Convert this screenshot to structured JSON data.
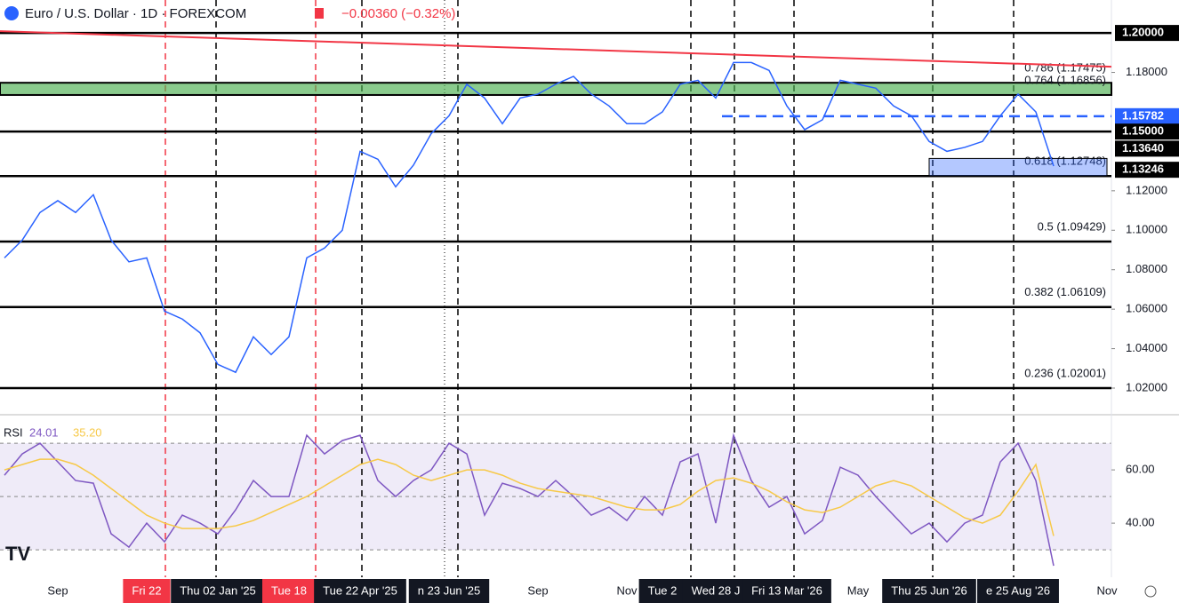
{
  "chart_data": [
    {
      "type": "line",
      "title": "Euro / U.S. Dollar · 1D · FOREXCOM",
      "subtitle": "−0.00360 (−0.32%)",
      "categories": [
        null,
        null,
        null,
        "Sep",
        null,
        null,
        null,
        null,
        "Fri 22",
        null,
        null,
        null,
        "Thu 02 Jan '25",
        null,
        null,
        null,
        "Tue 18",
        null,
        null,
        null,
        "Tue 22 Apr '25",
        null,
        null,
        null,
        null,
        "n 23 Jun '25",
        null,
        null,
        null,
        null,
        "Sep",
        null,
        null,
        null,
        null,
        "Nov",
        null,
        "Tue 2",
        null,
        null,
        "Wed 28 J",
        null,
        null,
        null,
        "Fri 13 Mar '26",
        null,
        null,
        null,
        "May",
        null,
        null,
        null,
        "Thu 25 Jun '26",
        null,
        null,
        null,
        null,
        "e 25 Aug '26",
        null,
        null,
        null,
        null,
        "Nov"
      ],
      "values": [
        1.086,
        1.095,
        1.109,
        1.115,
        1.109,
        1.118,
        1.095,
        1.084,
        1.086,
        1.059,
        1.055,
        1.048,
        1.032,
        1.028,
        1.046,
        1.037,
        1.046,
        1.086,
        1.091,
        1.1,
        1.14,
        1.136,
        1.122,
        1.133,
        1.149,
        1.158,
        1.174,
        1.167,
        1.154,
        1.167,
        1.169,
        1.174,
        1.178,
        1.169,
        1.163,
        1.154,
        1.154,
        1.16,
        1.174,
        1.176,
        1.167,
        1.185,
        1.185,
        1.181,
        1.163,
        1.151,
        1.156,
        1.176,
        1.174,
        1.172,
        1.163,
        1.158,
        1.145,
        1.14,
        1.142,
        1.145,
        1.158,
        1.169,
        1.16,
        1.1325,
        null,
        null,
        null
      ],
      "color": "#2962ff",
      "ylim": [
        1.0065,
        1.2167
      ],
      "yticks": [
        {
          "value": 1.02,
          "label": "1.02000"
        },
        {
          "value": 1.04,
          "label": "1.04000"
        },
        {
          "value": 1.06,
          "label": "1.06000"
        },
        {
          "value": 1.08,
          "label": "1.08000"
        },
        {
          "value": 1.1,
          "label": "1.10000"
        },
        {
          "value": 1.12,
          "label": "1.12000"
        },
        {
          "value": 1.18,
          "label": "1.18000"
        }
      ],
      "levels": [
        {
          "value": 1.2,
          "label": "1.20000",
          "color": "#000000"
        },
        {
          "value": 1.15782,
          "label": "1.15782",
          "color": "#2962ff"
        },
        {
          "value": 1.15,
          "label": "1.15000",
          "color": "#000000"
        },
        {
          "value": 1.1364,
          "label": "1.13640",
          "color": "#000000"
        },
        {
          "value": 1.13246,
          "label": "1.13246",
          "color": "#000000"
        }
      ],
      "fib_levels": [
        {
          "label": "0.786 (1.17475)",
          "value": 1.17475
        },
        {
          "label": "0.764 (1.16856)",
          "value": 1.16856
        },
        {
          "label": "0.618 (1.12748)",
          "value": 1.12748
        },
        {
          "label": "0.5 (1.09429)",
          "value": 1.09429
        },
        {
          "label": "0.382 (1.06109)",
          "value": 1.06109
        },
        {
          "label": "0.236 (1.02001)",
          "value": 1.02001
        }
      ],
      "zone": [
        1.16856,
        1.17475
      ],
      "zone_color": "#4caf50",
      "trendline": [
        1.2009,
        1.1829
      ],
      "trendline_color": "#f23645"
    },
    {
      "type": "line",
      "title": "RSI",
      "series": [
        {
          "name": "24.01",
          "color": "#7e57c2",
          "values": [
            58,
            66,
            70,
            63,
            56,
            55,
            36,
            31,
            40,
            33,
            43,
            40,
            36,
            45,
            56,
            50,
            50,
            73,
            66,
            71,
            73,
            56,
            50,
            56,
            60,
            70,
            66,
            43,
            55,
            53,
            50,
            56,
            50,
            43,
            46,
            41,
            50,
            43,
            63,
            66,
            40,
            73,
            56,
            46,
            50,
            36,
            41,
            61,
            58,
            50,
            43,
            36,
            40,
            33,
            40,
            43,
            63,
            70,
            56,
            24.01,
            null,
            null,
            null
          ]
        },
        {
          "name": "35.20",
          "color": "#f7c948",
          "values": [
            60,
            62,
            64,
            64,
            62,
            58,
            53,
            48,
            43,
            40,
            38,
            38,
            38,
            39,
            41,
            44,
            47,
            50,
            54,
            58,
            62,
            64,
            62,
            58,
            56,
            58,
            60,
            60,
            58,
            55,
            53,
            52,
            51,
            50,
            48,
            46,
            45,
            45,
            47,
            52,
            56,
            57,
            55,
            52,
            48,
            45,
            44,
            46,
            50,
            54,
            56,
            54,
            50,
            46,
            42,
            40,
            43,
            52,
            62,
            35.2,
            null,
            null,
            null
          ]
        }
      ],
      "ylim": [
        19.7,
        80.7
      ],
      "yticks": [
        {
          "value": 60,
          "label": "60.00"
        },
        {
          "value": 40,
          "label": "40.00"
        }
      ],
      "band": [
        30,
        70
      ],
      "midline": 50
    }
  ]
}
